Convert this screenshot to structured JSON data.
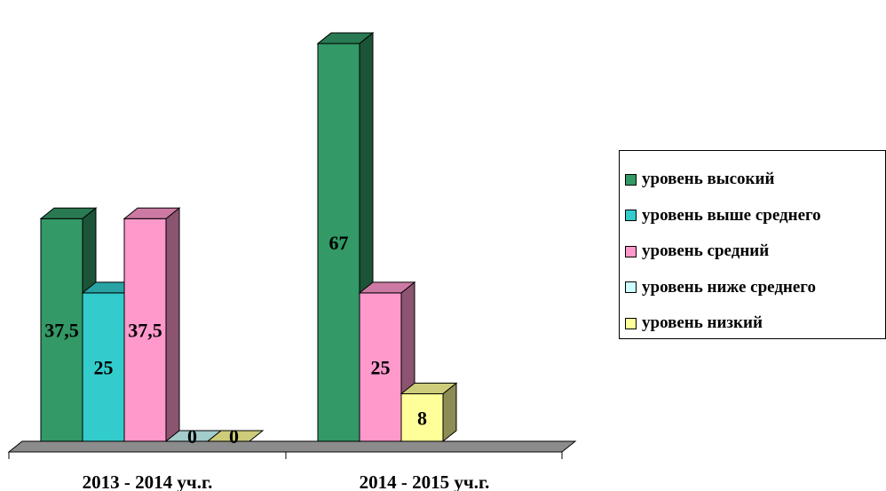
{
  "chart_data": {
    "type": "bar",
    "categories": [
      "2013 - 2014 уч.г.",
      "2014 - 2015 уч.г."
    ],
    "series": [
      {
        "name": "уровень высокий",
        "values": [
          "37,5",
          "67"
        ],
        "color": "#339966"
      },
      {
        "name": "уровень выше среднего",
        "values": [
          "25",
          null
        ],
        "color": "#33cccc"
      },
      {
        "name": "уровень средний",
        "values": [
          "37,5",
          "25"
        ],
        "color": "#ff99cc"
      },
      {
        "name": "уровень ниже среднего",
        "values": [
          "0",
          null
        ],
        "color": "#ccffff"
      },
      {
        "name": "уровень низкий",
        "values": [
          "0",
          "8"
        ],
        "color": "#ffff99"
      }
    ],
    "ylim": [
      0,
      70
    ],
    "grid": false,
    "legend": "right",
    "three_d": true
  }
}
